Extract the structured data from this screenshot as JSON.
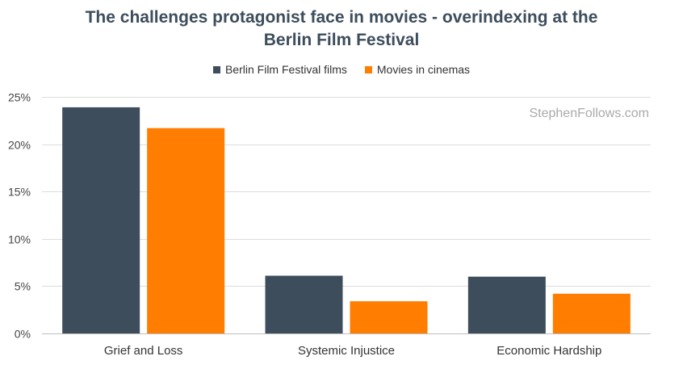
{
  "chart_data": {
    "type": "bar",
    "title_lines": [
      "The challenges protagonist face in movies - overindexing at the",
      "Berlin Film Festival"
    ],
    "categories": [
      "Grief and Loss",
      "Systemic Injustice",
      "Economic Hardship"
    ],
    "series": [
      {
        "name": "Berlin Film Festival films",
        "color": "#3d4d5c",
        "values": [
          23.9,
          6.1,
          6.0
        ]
      },
      {
        "name": "Movies in cinemas",
        "color": "#ff7d00",
        "values": [
          21.7,
          3.4,
          4.2
        ]
      }
    ],
    "yticks": [
      0,
      5,
      10,
      15,
      20,
      25
    ],
    "ytick_labels": [
      "0%",
      "5%",
      "10%",
      "15%",
      "20%",
      "25%"
    ],
    "ylim": [
      0,
      25
    ],
    "grid": true,
    "legend_position": "top-center"
  },
  "watermark": "StephenFollows.com"
}
